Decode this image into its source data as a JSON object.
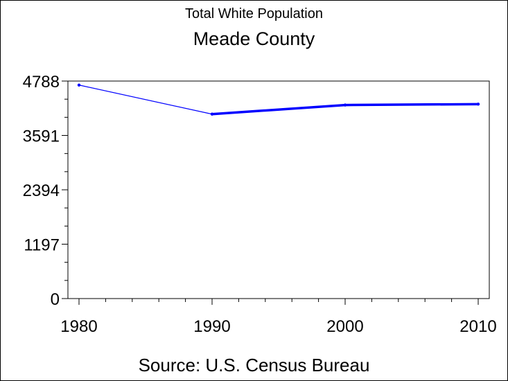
{
  "chart_data": {
    "type": "line",
    "title": "Total White Population",
    "subtitle": "Meade County",
    "footnote": "Source: U.S. Census Bureau",
    "xlabel": "",
    "ylabel": "",
    "x_ticks": [
      "1980",
      "1990",
      "2000",
      "2010"
    ],
    "y_ticks": [
      "0",
      "1197",
      "2394",
      "3591",
      "4788"
    ],
    "xlim": [
      1980,
      2010
    ],
    "ylim": [
      0,
      4788
    ],
    "grid": false,
    "series": [
      {
        "color": "#0000ff",
        "points": [
          {
            "x": 1980,
            "y": 4700
          },
          {
            "x": 1990,
            "y": 4060
          },
          {
            "x": 2000,
            "y": 4260
          },
          {
            "x": 2010,
            "y": 4280
          }
        ]
      }
    ]
  }
}
